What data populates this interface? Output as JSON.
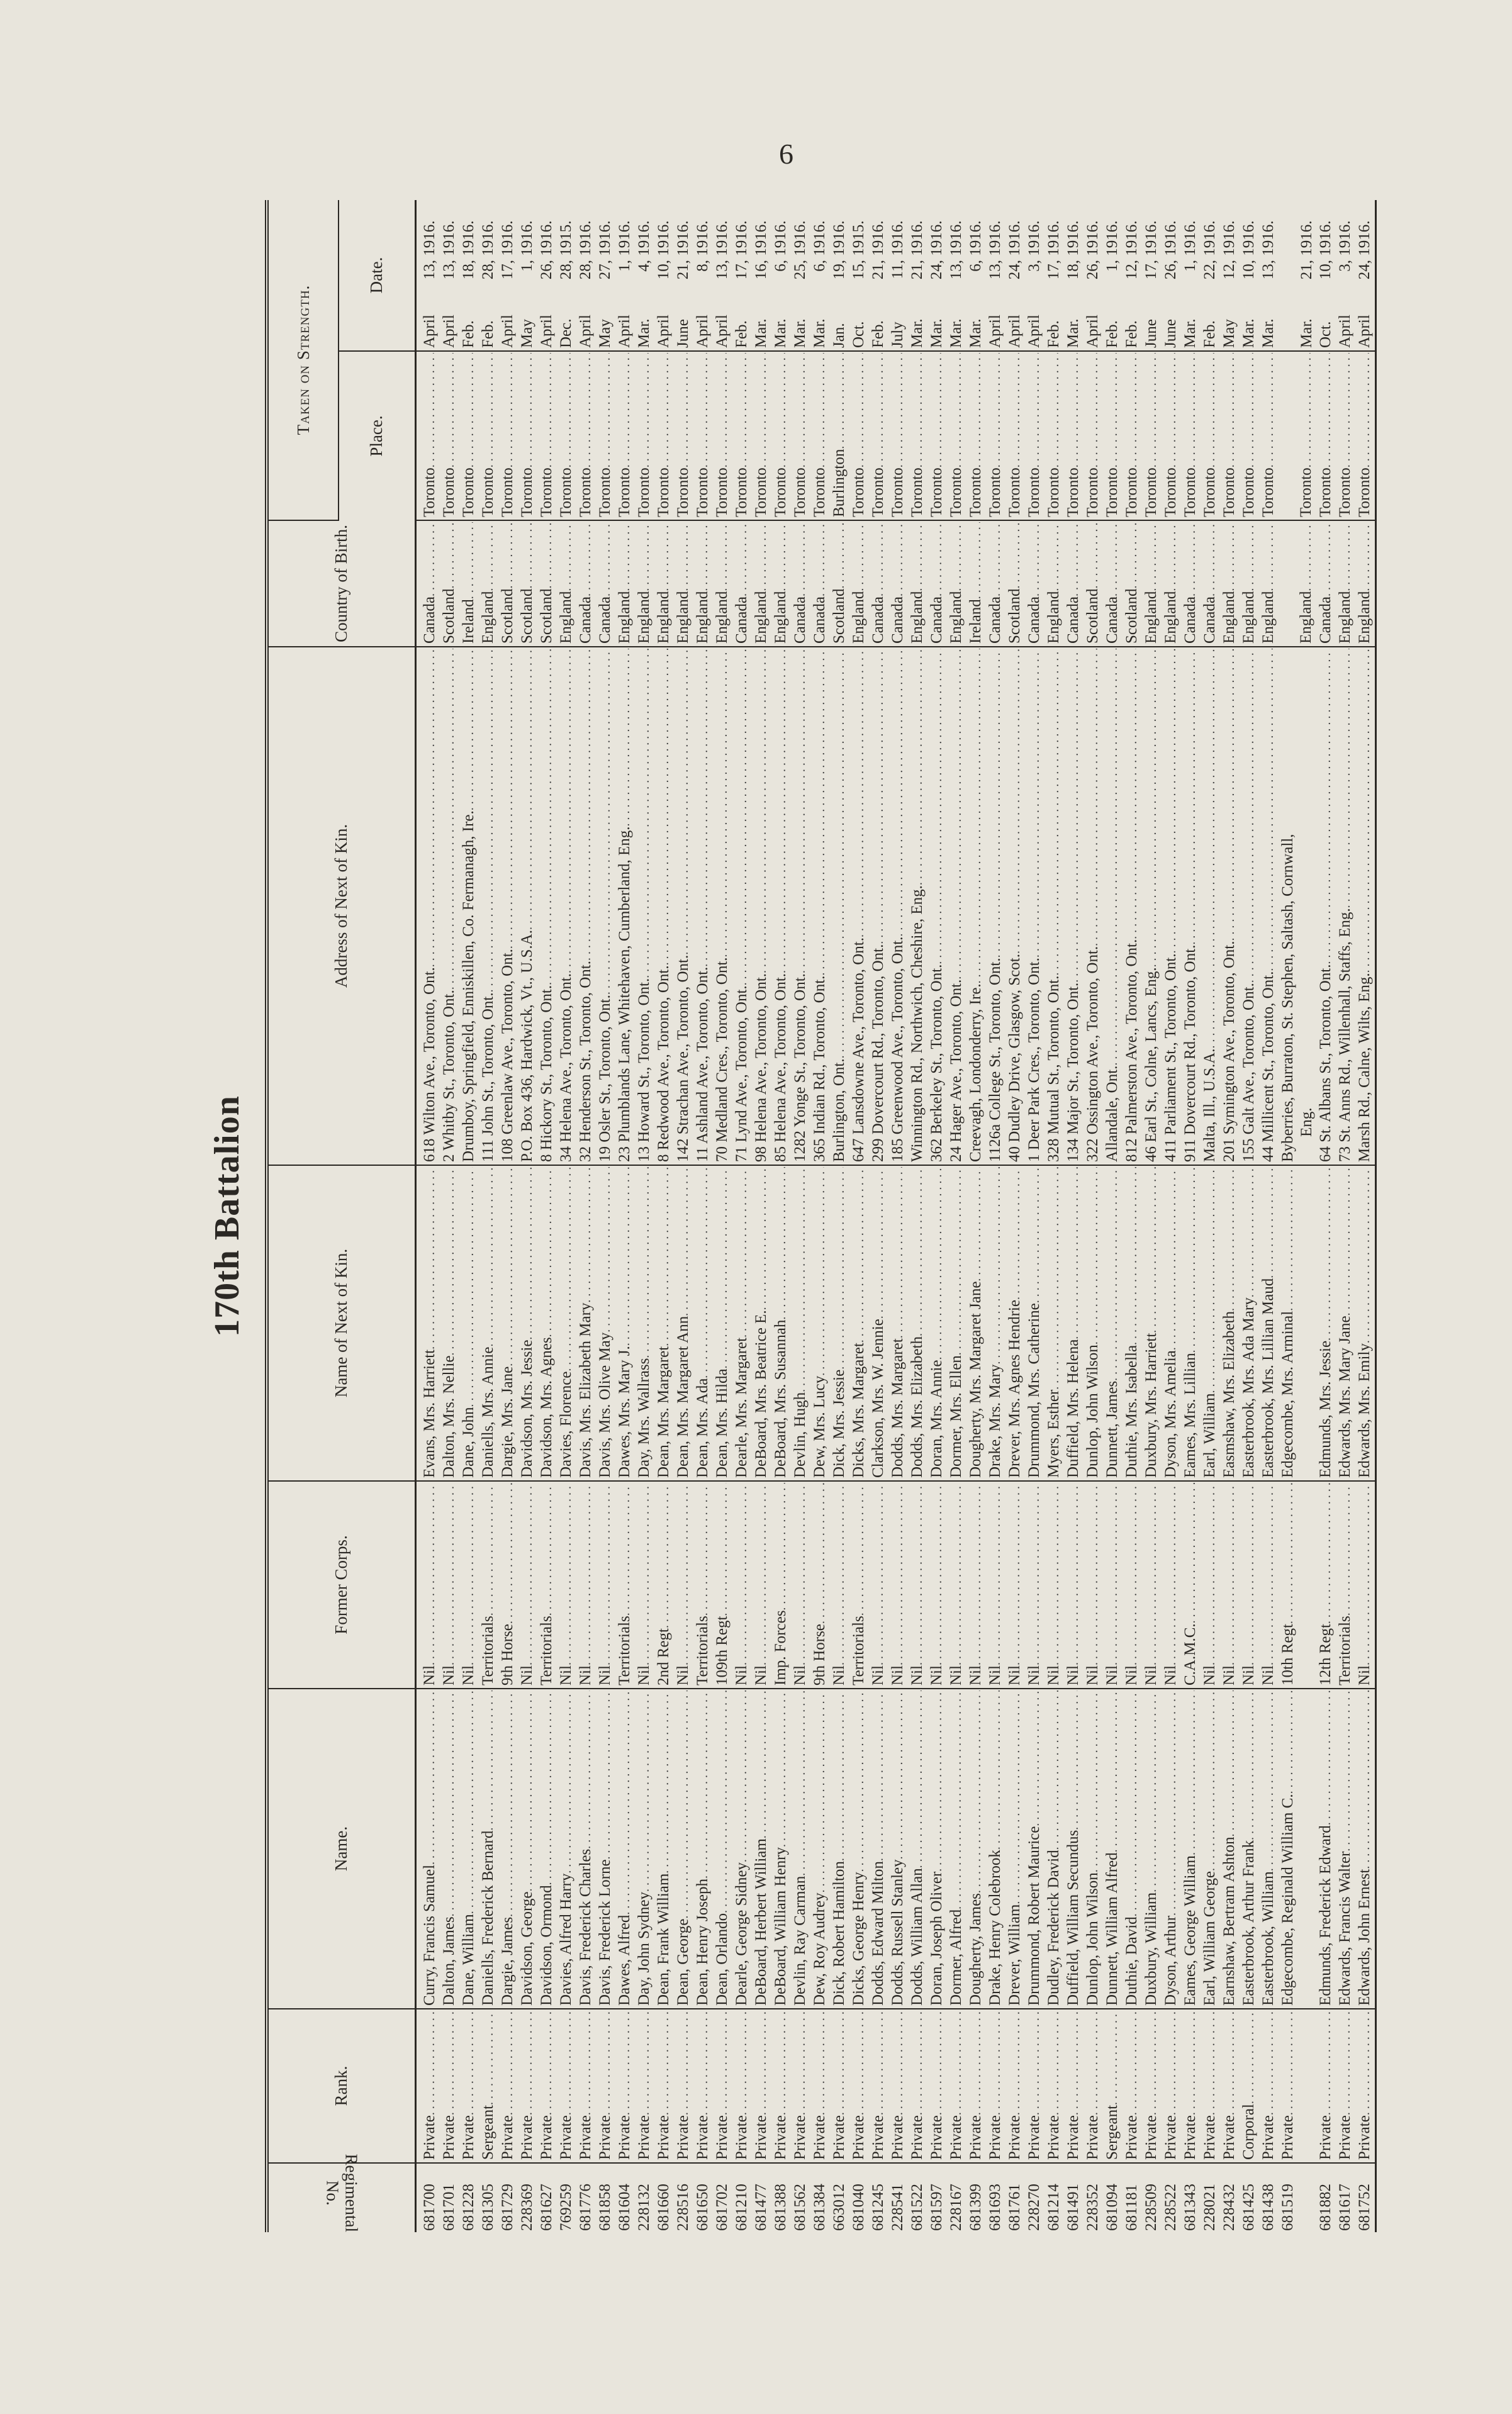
{
  "page_number": "6",
  "title": "170th Battalion",
  "headers": {
    "regimental_no": "Regimental No.",
    "rank": "Rank.",
    "name": "Name.",
    "former_corps": "Former Corps.",
    "kin_name": "Name of Next of Kin.",
    "kin_address": "Address of Next of Kin.",
    "country_of_birth": "Country of Birth.",
    "taken_on_strength": "Taken on Strength.",
    "place": "Place.",
    "date": "Date."
  },
  "rows": [
    {
      "no": "681700",
      "rank": "Private",
      "name": "Curry, Francis Samuel",
      "corps": "Nil",
      "kin": "Evans, Mrs. Harriett",
      "address": "618 Wilton Ave., Toronto, Ont.",
      "country": "Canada",
      "place": "Toronto",
      "month": "April",
      "day": "13,",
      "year": "1916."
    },
    {
      "no": "681701",
      "rank": "Private",
      "name": "Dalton, James",
      "corps": "Nil",
      "kin": "Dalton, Mrs. Nellie",
      "address": "2 Whitby St., Toronto, Ont.",
      "country": "Scotland",
      "place": "Toronto",
      "month": "April",
      "day": "13,",
      "year": "1916."
    },
    {
      "no": "681228",
      "rank": "Private",
      "name": "Dane, William",
      "corps": "Nil",
      "kin": "Dane, John",
      "address": "Drumboy, Springfield, Enniskillen, Co. Fermanagh, Ire.",
      "country": "Ireland",
      "place": "Toronto",
      "month": "Feb.",
      "day": "18,",
      "year": "1916."
    },
    {
      "no": "681305",
      "rank": "Sergeant",
      "name": "Daniells, Frederick Bernard",
      "corps": "Territorials",
      "kin": "Daniells, Mrs. Annie",
      "address": "111 John St., Toronto, Ont.",
      "country": "England",
      "place": "Toronto",
      "month": "Feb.",
      "day": "28,",
      "year": "1916."
    },
    {
      "no": "681729",
      "rank": "Private",
      "name": "Dargie, James",
      "corps": "9th Horse",
      "kin": "Dargie, Mrs. Jane",
      "address": "108 Greenlaw Ave., Toronto, Ont.",
      "country": "Scotland",
      "place": "Toronto",
      "month": "April",
      "day": "17,",
      "year": "1916."
    },
    {
      "no": "228369",
      "rank": "Private",
      "name": "Davidson, George",
      "corps": "Nil",
      "kin": "Davidson, Mrs. Jessie",
      "address": "P.O. Box 436, Hardwick, Vt., U.S.A.",
      "country": "Scotland",
      "place": "Toronto",
      "month": "May",
      "day": "1,",
      "year": "1916."
    },
    {
      "no": "681627",
      "rank": "Private",
      "name": "Davidson, Ormond",
      "corps": "Territorials",
      "kin": "Davidson, Mrs. Agnes",
      "address": "8 Hickory St., Toronto, Ont.",
      "country": "Scotland",
      "place": "Toronto",
      "month": "April",
      "day": "26,",
      "year": "1916."
    },
    {
      "no": "769259",
      "rank": "Private",
      "name": "Davies, Alfred Harry",
      "corps": "Nil",
      "kin": "Davies, Florence",
      "address": "34 Helena Ave., Toronto, Ont.",
      "country": "England",
      "place": "Toronto",
      "month": "Dec.",
      "day": "28,",
      "year": "1915."
    },
    {
      "no": "681776",
      "rank": "Private",
      "name": "Davis, Frederick Charles",
      "corps": "Nil",
      "kin": "Davis, Mrs. Elizabeth Mary",
      "address": "32 Henderson St., Toronto, Ont.",
      "country": "Canada",
      "place": "Toronto",
      "month": "April",
      "day": "28,",
      "year": "1916."
    },
    {
      "no": "681858",
      "rank": "Private",
      "name": "Davis, Frederick Lorne",
      "corps": "Nil",
      "kin": "Davis, Mrs. Olive May",
      "address": "19 Osler St., Toronto, Ont.",
      "country": "Canada",
      "place": "Toronto",
      "month": "May",
      "day": "27,",
      "year": "1916."
    },
    {
      "no": "681604",
      "rank": "Private",
      "name": "Dawes, Alfred",
      "corps": "Territorials",
      "kin": "Dawes, Mrs. Mary J.",
      "address": "23 Plumblands Lane, Whitehaven, Cumberland, Eng.",
      "country": "England",
      "place": "Toronto",
      "month": "April",
      "day": "1,",
      "year": "1916."
    },
    {
      "no": "228132",
      "rank": "Private",
      "name": "Day, John Sydney",
      "corps": "Nil",
      "kin": "Day, Mrs. Wallrass",
      "address": "13 Howard St., Toronto, Ont.",
      "country": "England",
      "place": "Toronto",
      "month": "Mar.",
      "day": "4,",
      "year": "1916."
    },
    {
      "no": "681660",
      "rank": "Private",
      "name": "Dean, Frank William",
      "corps": "2nd Regt",
      "kin": "Dean, Mrs. Margaret",
      "address": "8 Redwood Ave., Toronto, Ont.",
      "country": "England",
      "place": "Toronto",
      "month": "April",
      "day": "10,",
      "year": "1916."
    },
    {
      "no": "228516",
      "rank": "Private",
      "name": "Dean, George",
      "corps": "Nil",
      "kin": "Dean, Mrs. Margaret Ann",
      "address": "142 Strachan Ave., Toronto, Ont.",
      "country": "England",
      "place": "Toronto",
      "month": "June",
      "day": "21,",
      "year": "1916."
    },
    {
      "no": "681650",
      "rank": "Private",
      "name": "Dean, Henry Joseph",
      "corps": "Territorials",
      "kin": "Dean, Mrs. Ada",
      "address": "11 Ashland Ave., Toronto, Ont.",
      "country": "England",
      "place": "Toronto",
      "month": "April",
      "day": "8,",
      "year": "1916."
    },
    {
      "no": "681702",
      "rank": "Private",
      "name": "Dean, Orlando",
      "corps": "109th Regt",
      "kin": "Dean, Mrs. Hilda",
      "address": "70 Medland Cres., Toronto, Ont.",
      "country": "England",
      "place": "Toronto",
      "month": "April",
      "day": "13,",
      "year": "1916."
    },
    {
      "no": "681210",
      "rank": "Private",
      "name": "Dearle, George Sidney",
      "corps": "Nil",
      "kin": "Dearle, Mrs. Margaret",
      "address": "71 Lynd Ave., Toronto, Ont.",
      "country": "Canada",
      "place": "Toronto",
      "month": "Feb.",
      "day": "17,",
      "year": "1916."
    },
    {
      "no": "681477",
      "rank": "Private",
      "name": "DeBoard, Herbert William",
      "corps": "Nil",
      "kin": "DeBoard, Mrs. Beatrice E.",
      "address": "98 Helena Ave., Toronto, Ont.",
      "country": "England",
      "place": "Toronto",
      "month": "Mar.",
      "day": "16,",
      "year": "1916."
    },
    {
      "no": "681388",
      "rank": "Private",
      "name": "DeBoard, William Henry",
      "corps": "Imp. Forces",
      "kin": "DeBoard, Mrs. Susannah",
      "address": "85 Helena Ave., Toronto, Ont.",
      "country": "England",
      "place": "Toronto",
      "month": "Mar.",
      "day": "6,",
      "year": "1916."
    },
    {
      "no": "681562",
      "rank": "Private",
      "name": "Devlin, Ray Carman",
      "corps": "Nil",
      "kin": "Devlin, Hugh",
      "address": "1282 Yonge St., Toronto, Ont.",
      "country": "Canada",
      "place": "Toronto",
      "month": "Mar.",
      "day": "25,",
      "year": "1916."
    },
    {
      "no": "681384",
      "rank": "Private",
      "name": "Dew, Roy Audrey",
      "corps": "9th Horse",
      "kin": "Dew, Mrs. Lucy",
      "address": "365 Indian Rd., Toronto, Ont.",
      "country": "Canada",
      "place": "Toronto",
      "month": "Mar.",
      "day": "6,",
      "year": "1916."
    },
    {
      "no": "663012",
      "rank": "Private",
      "name": "Dick, Robert Hamilton",
      "corps": "Nil",
      "kin": "Dick, Mrs. Jessie",
      "address": "Burlington, Ont.",
      "country": "Scotland",
      "place": "Burlington",
      "month": "Jan.",
      "day": "19,",
      "year": "1916."
    },
    {
      "no": "681040",
      "rank": "Private",
      "name": "Dicks, George Henry",
      "corps": "Territorials",
      "kin": "Dicks, Mrs. Margaret",
      "address": "647 Lansdowne Ave., Toronto, Ont.",
      "country": "England",
      "place": "Toronto",
      "month": "Oct.",
      "day": "15,",
      "year": "1915."
    },
    {
      "no": "681245",
      "rank": "Private",
      "name": "Dodds, Edward Milton",
      "corps": "Nil",
      "kin": "Clarkson, Mrs. W. Jennie",
      "address": "299 Dovercourt Rd., Toronto, Ont.",
      "country": "Canada",
      "place": "Toronto",
      "month": "Feb.",
      "day": "21,",
      "year": "1916."
    },
    {
      "no": "228541",
      "rank": "Private",
      "name": "Dodds, Russell Stanley",
      "corps": "Nil",
      "kin": "Dodds, Mrs. Margaret",
      "address": "185 Greenwood Ave., Toronto, Ont.",
      "country": "Canada",
      "place": "Toronto",
      "month": "July",
      "day": "11,",
      "year": "1916."
    },
    {
      "no": "681522",
      "rank": "Private",
      "name": "Dodds, William Allan",
      "corps": "Nil",
      "kin": "Dodds, Mrs. Elizabeth",
      "address": "Winnington Rd., Northwich, Cheshire, Eng.",
      "country": "England",
      "place": "Toronto",
      "month": "Mar.",
      "day": "21,",
      "year": "1916."
    },
    {
      "no": "681597",
      "rank": "Private",
      "name": "Doran, Joseph Oliver",
      "corps": "Nil",
      "kin": "Doran, Mrs. Annie",
      "address": "362 Berkeley St., Toronto, Ont.",
      "country": "Canada",
      "place": "Toronto",
      "month": "Mar.",
      "day": "24,",
      "year": "1916."
    },
    {
      "no": "228167",
      "rank": "Private",
      "name": "Dormer, Alfred",
      "corps": "Nil",
      "kin": "Dormer, Mrs. Ellen",
      "address": "24 Hager Ave., Toronto, Ont.",
      "country": "England",
      "place": "Toronto",
      "month": "Mar.",
      "day": "13,",
      "year": "1916."
    },
    {
      "no": "681399",
      "rank": "Private",
      "name": "Dougherty, James",
      "corps": "Nil",
      "kin": "Dougherty, Mrs. Margaret Jane",
      "address": "Creevagh, Londonderry, Ire.",
      "country": "Ireland",
      "place": "Toronto",
      "month": "Mar.",
      "day": "6,",
      "year": "1916."
    },
    {
      "no": "681693",
      "rank": "Private",
      "name": "Drake, Henry Colebrook",
      "corps": "Nil",
      "kin": "Drake, Mrs. Mary",
      "address": "1126a College St., Toronto, Ont.",
      "country": "Canada",
      "place": "Toronto",
      "month": "April",
      "day": "13,",
      "year": "1916."
    },
    {
      "no": "681761",
      "rank": "Private",
      "name": "Drever, William",
      "corps": "Nil",
      "kin": "Drever, Mrs. Agnes Hendrie",
      "address": "40 Dudley Drive, Glasgow, Scot.",
      "country": "Scotland",
      "place": "Toronto",
      "month": "April",
      "day": "24,",
      "year": "1916."
    },
    {
      "no": "228270",
      "rank": "Private",
      "name": "Drummond, Robert Maurice",
      "corps": "Nil",
      "kin": "Drummond, Mrs. Catherine",
      "address": "1 Deer Park Cres., Toronto, Ont.",
      "country": "Canada",
      "place": "Toronto",
      "month": "April",
      "day": "3,",
      "year": "1916."
    },
    {
      "no": "681214",
      "rank": "Private",
      "name": "Dudley, Frederick David",
      "corps": "Nil",
      "kin": "Myers, Esther",
      "address": "328 Mutual St., Toronto, Ont.",
      "country": "England",
      "place": "Toronto",
      "month": "Feb.",
      "day": "17,",
      "year": "1916."
    },
    {
      "no": "681491",
      "rank": "Private",
      "name": "Duffield, William Secundus",
      "corps": "Nil",
      "kin": "Duffield, Mrs. Helena",
      "address": "134 Major St., Toronto, Ont.",
      "country": "Canada",
      "place": "Toronto",
      "month": "Mar.",
      "day": "18,",
      "year": "1916."
    },
    {
      "no": "228352",
      "rank": "Private",
      "name": "Dunlop, John Wilson",
      "corps": "Nil",
      "kin": "Dunlop, John Wilson",
      "address": "322 Ossington Ave., Toronto, Ont.",
      "country": "Scotland",
      "place": "Toronto",
      "month": "April",
      "day": "26,",
      "year": "1916."
    },
    {
      "no": "681094",
      "rank": "Sergeant",
      "name": "Dunnett, William Alfred",
      "corps": "Nil",
      "kin": "Dunnett, James",
      "address": "Allandale, Ont.",
      "country": "Canada",
      "place": "Toronto",
      "month": "Feb.",
      "day": "1,",
      "year": "1916."
    },
    {
      "no": "681181",
      "rank": "Private",
      "name": "Duthie, David",
      "corps": "Nil",
      "kin": "Duthie, Mrs. Isabella",
      "address": "812 Palmerston Ave., Toronto, Ont.",
      "country": "Scotland",
      "place": "Toronto",
      "month": "Feb.",
      "day": "12,",
      "year": "1916."
    },
    {
      "no": "228509",
      "rank": "Private",
      "name": "Duxbury, William",
      "corps": "Nil",
      "kin": "Duxbury, Mrs. Harriett",
      "address": "46 Earl St., Colne, Lancs, Eng.",
      "country": "England",
      "place": "Toronto",
      "month": "June",
      "day": "17,",
      "year": "1916."
    },
    {
      "no": "228522",
      "rank": "Private",
      "name": "Dyson, Arthur",
      "corps": "Nil",
      "kin": "Dyson, Mrs. Amelia",
      "address": "411 Parliament St., Toronto, Ont.",
      "country": "England",
      "place": "Toronto",
      "month": "June",
      "day": "26,",
      "year": "1916."
    },
    {
      "no": "681343",
      "rank": "Private",
      "name": "Eames, George William",
      "corps": "C.A.M.C.",
      "kin": "Eames, Mrs. Lillian",
      "address": "911 Dovercourt Rd., Toronto, Ont.",
      "country": "Canada",
      "place": "Toronto",
      "month": "Mar.",
      "day": "1,",
      "year": "1916."
    },
    {
      "no": "228021",
      "rank": "Private",
      "name": "Earl, William George",
      "corps": "Nil",
      "kin": "Earl, William",
      "address": "Malta, Ill., U.S.A.",
      "country": "Canada",
      "place": "Toronto",
      "month": "Feb.",
      "day": "22,",
      "year": "1916."
    },
    {
      "no": "228432",
      "rank": "Private",
      "name": "Earnshaw, Bertram Ashton",
      "corps": "Nil",
      "kin": "Easmshaw, Mrs. Elizabeth",
      "address": "201 Symington Ave., Toronto, Ont.",
      "country": "England",
      "place": "Toronto",
      "month": "May",
      "day": "12,",
      "year": "1916."
    },
    {
      "no": "681425",
      "rank": "Corporal",
      "name": "Easterbrook, Arthur Frank",
      "corps": "Nil",
      "kin": "Easterbrook, Mrs. Ada Mary",
      "address": "155 Galt Ave., Toronto, Ont.",
      "country": "England",
      "place": "Toronto",
      "month": "Mar.",
      "day": "10,",
      "year": "1916."
    },
    {
      "no": "681438",
      "rank": "Private",
      "name": "Easterbrook, William",
      "corps": "Nil",
      "kin": "Easterbrook, Mrs. Lillian Maud",
      "address": "44 Millicent St., Toronto, Ont.",
      "country": "England",
      "place": "Toronto",
      "month": "Mar.",
      "day": "13,",
      "year": "1916."
    },
    {
      "no": "681519",
      "rank": "Private",
      "name": "Edgecombe, Reginald William C.",
      "corps": "10th Regt",
      "kin": "Edgecombe, Mrs. Arminal",
      "address": "Byberries, Burraton, St. Stephen, Saltash, Cornwall,",
      "address_cont": "Eng.",
      "country": "England",
      "place": "Toronto",
      "month": "Mar.",
      "day": "21,",
      "year": "1916."
    },
    {
      "no": "681882",
      "rank": "Private",
      "name": "Edmunds, Frederick Edward",
      "corps": "12th Regt",
      "kin": "Edmunds, Mrs. Jessie",
      "address": "64 St. Albans St., Toronto, Ont.",
      "country": "Canada",
      "place": "Toronto",
      "month": "Oct.",
      "day": "10,",
      "year": "1916."
    },
    {
      "no": "681617",
      "rank": "Private",
      "name": "Edwards, Francis Walter",
      "corps": "Territorials",
      "kin": "Edwards, Mrs. Mary Jane",
      "address": "73 St. Anns Rd., Willenhall, Staffs, Eng.",
      "country": "England",
      "place": "Toronto",
      "month": "April",
      "day": "3,",
      "year": "1916."
    },
    {
      "no": "681752",
      "rank": "Private",
      "name": "Edwards, John Ernest",
      "corps": "Nil",
      "kin": "Edwards, Mrs. Emily",
      "address": "Marsh Rd., Calne, Wilts, Eng.",
      "country": "England",
      "place": "Toronto",
      "month": "April",
      "day": "24,",
      "year": "1916."
    }
  ]
}
